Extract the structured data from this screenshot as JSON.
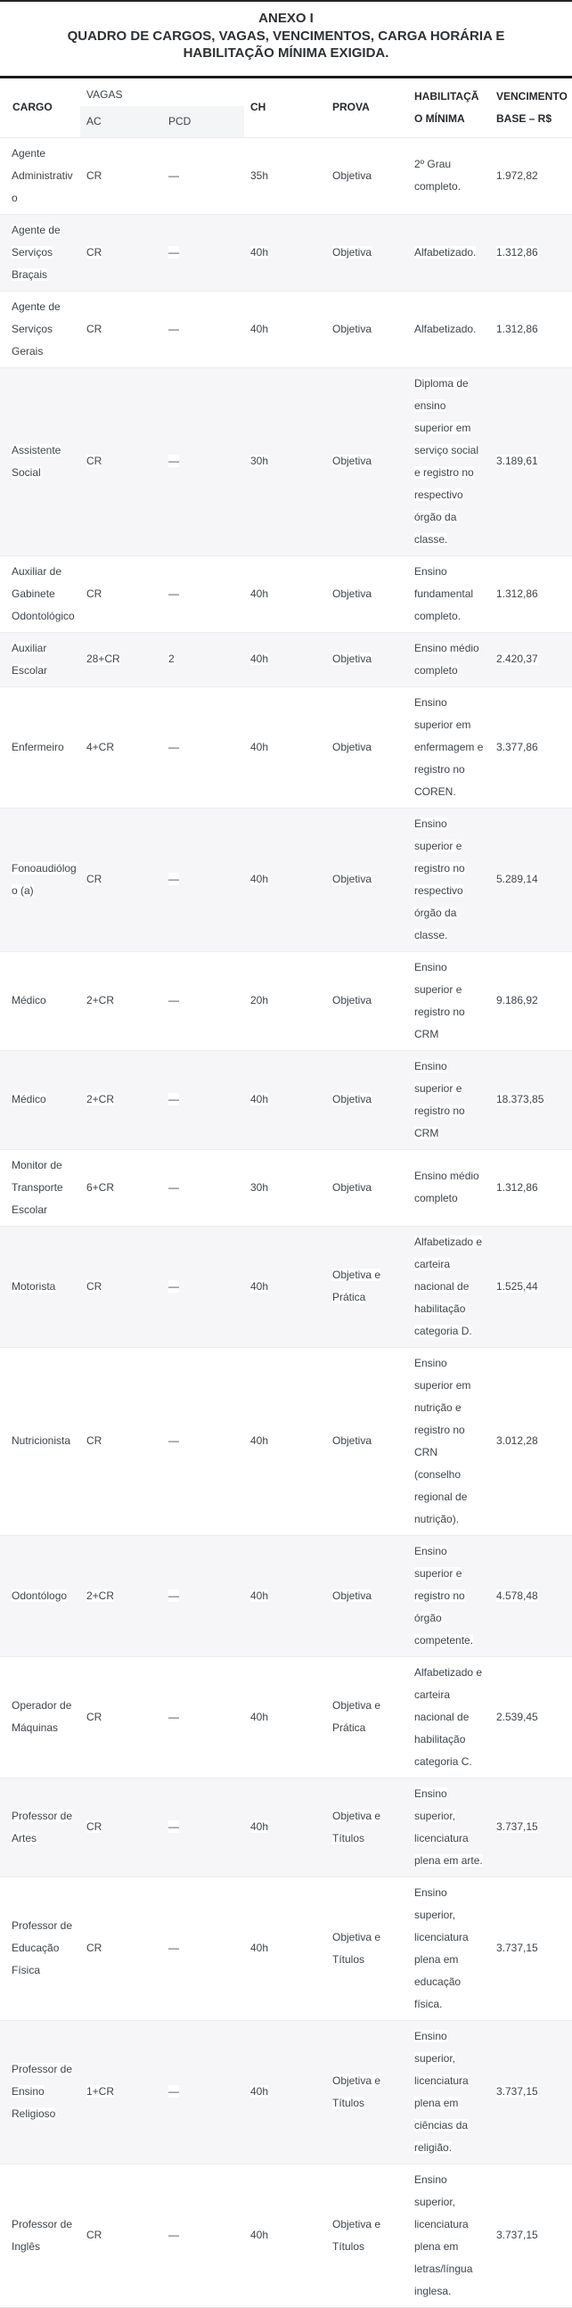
{
  "title": {
    "line1": "ANEXO I",
    "line2": "QUADRO DE CARGOS, VAGAS, VENCIMENTOS, CARGA HORÁRIA E HABILITAÇÃO MÍNIMA EXIGIDA."
  },
  "table": {
    "headers": {
      "cargo": "CARGO",
      "vagas_group": "VAGAS",
      "ac": "AC",
      "pcd": "PCD",
      "ch": "CH",
      "prova": "PROVA",
      "habilitacao": "HABILITAÇÃO MÍNIMA",
      "vencimento": "VENCIMENTO BASE – R$"
    },
    "rows": [
      {
        "cargo": "Agente Administrativo",
        "ac": "CR",
        "pcd": "—",
        "ch": "35h",
        "prova": "Objetiva",
        "habilitacao": "2º Grau completo.",
        "vencimento": "1.972,82"
      },
      {
        "cargo": "Agente de Serviços Braçais",
        "ac": "CR",
        "pcd": "—",
        "ch": "40h",
        "prova": "Objetiva",
        "habilitacao": "Alfabetizado.",
        "vencimento": "1.312,86"
      },
      {
        "cargo": "Agente de Serviços Gerais",
        "ac": "CR",
        "pcd": "—",
        "ch": "40h",
        "prova": "Objetiva",
        "habilitacao": "Alfabetizado.",
        "vencimento": "1.312,86"
      },
      {
        "cargo": "Assistente Social",
        "ac": "CR",
        "pcd": "—",
        "ch": "30h",
        "prova": "Objetiva",
        "habilitacao": "Diploma de ensino superior em serviço social e registro no respectivo órgão da classe.",
        "vencimento": "3.189,61"
      },
      {
        "cargo": "Auxiliar de Gabinete Odontológico",
        "ac": "CR",
        "pcd": "—",
        "ch": "40h",
        "prova": "Objetiva",
        "habilitacao": "Ensino fundamental completo.",
        "vencimento": "1.312,86"
      },
      {
        "cargo": "Auxiliar Escolar",
        "ac": "28+CR",
        "pcd": "2",
        "ch": "40h",
        "prova": "Objetiva",
        "habilitacao": "Ensino médio completo",
        "vencimento": "2.420,37"
      },
      {
        "cargo": "Enfermeiro",
        "ac": "4+CR",
        "pcd": "—",
        "ch": "40h",
        "prova": "Objetiva",
        "habilitacao": "Ensino superior em enfermagem e registro no COREN.",
        "vencimento": "3.377,86"
      },
      {
        "cargo": "Fonoaudiólogo (a)",
        "ac": "CR",
        "pcd": "—",
        "ch": "40h",
        "prova": "Objetiva",
        "habilitacao": "Ensino superior e registro no respectivo órgão da classe.",
        "vencimento": "5.289,14"
      },
      {
        "cargo": "Médico",
        "ac": "2+CR",
        "pcd": "—",
        "ch": "20h",
        "prova": "Objetiva",
        "habilitacao": "Ensino superior e registro no CRM",
        "vencimento": "9.186,92"
      },
      {
        "cargo": "Médico",
        "ac": "2+CR",
        "pcd": "—",
        "ch": "40h",
        "prova": "Objetiva",
        "habilitacao": "Ensino superior e registro no CRM",
        "vencimento": "18.373,85"
      },
      {
        "cargo": "Monitor de Transporte Escolar",
        "ac": "6+CR",
        "pcd": "—",
        "ch": "30h",
        "prova": "Objetiva",
        "habilitacao": "Ensino médio completo",
        "vencimento": "1.312,86"
      },
      {
        "cargo": "Motorista",
        "ac": "CR",
        "pcd": "—",
        "ch": "40h",
        "prova": "Objetiva e Prática",
        "habilitacao": "Alfabetizado e carteira nacional de habilitação categoria D.",
        "vencimento": "1.525,44"
      },
      {
        "cargo": "Nutricionista",
        "ac": "CR",
        "pcd": "—",
        "ch": "40h",
        "prova": "Objetiva",
        "habilitacao": "Ensino superior em nutrição e registro no CRN (conselho regional de nutrição).",
        "vencimento": "3.012,28"
      },
      {
        "cargo": "Odontólogo",
        "ac": "2+CR",
        "pcd": "—",
        "ch": "40h",
        "prova": "Objetiva",
        "habilitacao": "Ensino superior e registro no órgão competente.",
        "vencimento": "4.578,48"
      },
      {
        "cargo": "Operador de Máquinas",
        "ac": "CR",
        "pcd": "—",
        "ch": "40h",
        "prova": "Objetiva e Prática",
        "habilitacao": "Alfabetizado e carteira nacional de habilitação categoria C.",
        "vencimento": "2.539,45"
      },
      {
        "cargo": "Professor de Artes",
        "ac": "CR",
        "pcd": "—",
        "ch": "40h",
        "prova": "Objetiva e Títulos",
        "habilitacao": "Ensino superior, licenciatura plena em arte.",
        "vencimento": "3.737,15"
      },
      {
        "cargo": "Professor de Educação Física",
        "ac": "CR",
        "pcd": "—",
        "ch": "40h",
        "prova": "Objetiva e Títulos",
        "habilitacao": "Ensino superior, licenciatura plena em educação física.",
        "vencimento": "3.737,15"
      },
      {
        "cargo": "Professor de Ensino Religioso",
        "ac": "1+CR",
        "pcd": "—",
        "ch": "40h",
        "prova": "Objetiva e Títulos",
        "habilitacao": "Ensino superior, licenciatura plena em ciências da religião.",
        "vencimento": "3.737,15"
      },
      {
        "cargo": "Professor de Inglês",
        "ac": "CR",
        "pcd": "—",
        "ch": "40h",
        "prova": "Objetiva e Títulos",
        "habilitacao": "Ensino superior, licenciatura plena em letras/língua inglesa.",
        "vencimento": "3.737,15"
      }
    ]
  },
  "colors": {
    "stripe_row": "#f6f6f8",
    "subheader_band": "#f4f5f6",
    "text": "#3e444a",
    "header_text": "#26292d",
    "title_rule": "#1b1c1e",
    "highlight": "#ffffff"
  }
}
